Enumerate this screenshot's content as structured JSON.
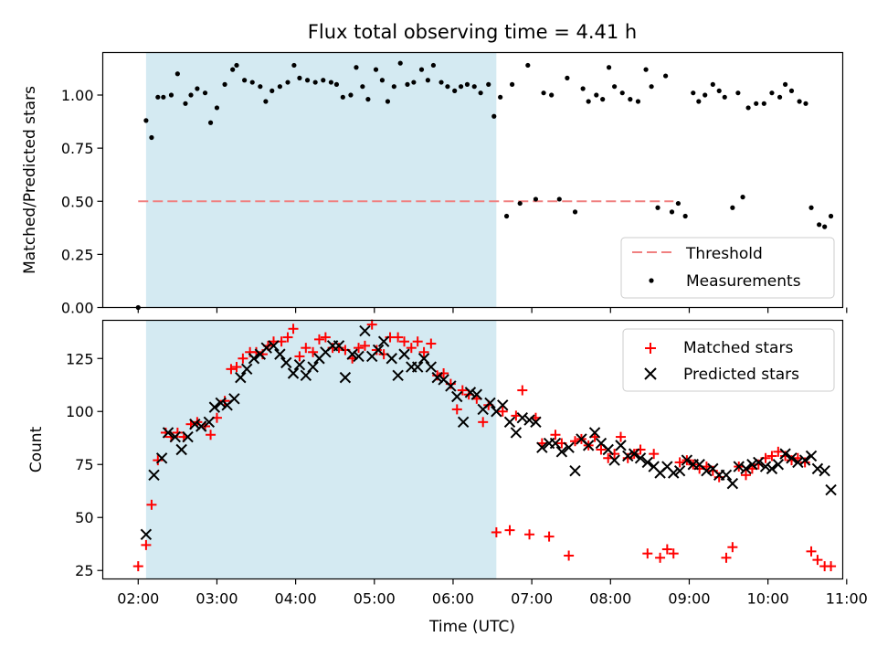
{
  "chart_data": [
    {
      "type": "scatter",
      "title": "Flux total observing time = 4.41 h",
      "xlabel": "",
      "ylabel": "Matched/Predicted stars",
      "xlim": [
        1.55,
        10.95
      ],
      "ylim": [
        0,
        1.2
      ],
      "x_ticks": [
        2,
        3,
        4,
        5,
        6,
        7,
        8,
        9,
        10,
        11
      ],
      "y_ticks": [
        0,
        0.25,
        0.5,
        0.75,
        1.0
      ],
      "y_tick_labels": [
        "0.00",
        "0.25",
        "0.50",
        "0.75",
        "1.00"
      ],
      "shaded_region": [
        2.1,
        6.55
      ],
      "legend_position": "lower right",
      "threshold": {
        "name": "Threshold",
        "y": 0.5,
        "x_range": [
          2.0,
          8.8
        ],
        "color": "#f08080"
      },
      "series": [
        {
          "name": "Measurements",
          "color": "#000000",
          "x": [
            2.0,
            2.1,
            2.17,
            2.25,
            2.32,
            2.42,
            2.5,
            2.6,
            2.67,
            2.75,
            2.85,
            2.92,
            3.0,
            3.1,
            3.2,
            3.25,
            3.35,
            3.45,
            3.55,
            3.62,
            3.7,
            3.8,
            3.9,
            3.98,
            4.05,
            4.15,
            4.25,
            4.35,
            4.45,
            4.52,
            4.6,
            4.7,
            4.77,
            4.85,
            4.92,
            5.02,
            5.1,
            5.17,
            5.25,
            5.33,
            5.42,
            5.5,
            5.6,
            5.68,
            5.75,
            5.85,
            5.93,
            6.02,
            6.1,
            6.18,
            6.27,
            6.35,
            6.45,
            6.52,
            6.6,
            6.68,
            6.75,
            6.85,
            6.95,
            7.05,
            7.15,
            7.25,
            7.35,
            7.45,
            7.55,
            7.65,
            7.72,
            7.82,
            7.9,
            7.98,
            8.05,
            8.15,
            8.25,
            8.35,
            8.45,
            8.52,
            8.6,
            8.7,
            8.78,
            8.86,
            8.95,
            9.05,
            9.12,
            9.2,
            9.3,
            9.38,
            9.45,
            9.55,
            9.62,
            9.68,
            9.75,
            9.85,
            9.95,
            10.05,
            10.15,
            10.22,
            10.3,
            10.4,
            10.48,
            10.55,
            10.65,
            10.72,
            10.8
          ],
          "y": [
            0.0,
            0.88,
            0.8,
            0.99,
            0.99,
            1.0,
            1.1,
            0.96,
            1.0,
            1.03,
            1.01,
            0.87,
            0.94,
            1.05,
            1.12,
            1.14,
            1.07,
            1.06,
            1.04,
            0.97,
            1.02,
            1.04,
            1.06,
            1.14,
            1.08,
            1.07,
            1.06,
            1.07,
            1.06,
            1.05,
            0.99,
            1.0,
            1.13,
            1.04,
            0.98,
            1.12,
            1.07,
            0.97,
            1.04,
            1.15,
            1.05,
            1.06,
            1.12,
            1.07,
            1.14,
            1.06,
            1.04,
            1.02,
            1.04,
            1.05,
            1.04,
            1.01,
            1.05,
            0.9,
            0.99,
            0.43,
            1.05,
            0.49,
            1.14,
            0.51,
            1.01,
            1.0,
            0.51,
            1.08,
            0.45,
            1.03,
            0.97,
            1.0,
            0.98,
            1.13,
            1.04,
            1.01,
            0.98,
            0.97,
            1.12,
            1.04,
            0.47,
            1.09,
            0.45,
            0.49,
            0.43,
            1.01,
            0.97,
            1.0,
            1.05,
            1.02,
            0.99,
            0.47,
            1.01,
            0.52,
            0.94,
            0.96,
            0.96,
            1.01,
            0.99,
            1.05,
            1.02,
            0.97,
            0.96,
            0.47,
            0.39,
            0.38,
            0.43
          ]
        }
      ]
    },
    {
      "type": "scatter",
      "title": "",
      "xlabel": "Time (UTC)",
      "ylabel": "Count",
      "xlim": [
        1.55,
        10.95
      ],
      "ylim": [
        21,
        143
      ],
      "x_ticks": [
        2,
        3,
        4,
        5,
        6,
        7,
        8,
        9,
        10,
        11
      ],
      "x_tick_labels": [
        "02:00",
        "03:00",
        "04:00",
        "05:00",
        "06:00",
        "07:00",
        "08:00",
        "09:00",
        "10:00",
        "11:00"
      ],
      "y_ticks": [
        25,
        50,
        75,
        100,
        125
      ],
      "y_tick_labels": [
        "25",
        "50",
        "75",
        "100",
        "125"
      ],
      "shaded_region": [
        2.1,
        6.55
      ],
      "legend_position": "upper right",
      "series": [
        {
          "name": "Matched stars",
          "marker": "+",
          "color": "#ff0000",
          "x": [
            2.0,
            2.1,
            2.17,
            2.25,
            2.35,
            2.42,
            2.5,
            2.58,
            2.67,
            2.75,
            2.85,
            2.92,
            3.0,
            3.1,
            3.18,
            3.25,
            3.33,
            3.42,
            3.5,
            3.58,
            3.65,
            3.72,
            3.82,
            3.9,
            3.97,
            4.05,
            4.13,
            4.22,
            4.3,
            4.38,
            4.47,
            4.55,
            4.63,
            4.72,
            4.8,
            4.88,
            4.97,
            5.03,
            5.12,
            5.2,
            5.3,
            5.38,
            5.47,
            5.55,
            5.63,
            5.72,
            5.8,
            5.88,
            5.97,
            6.05,
            6.12,
            6.2,
            6.3,
            6.38,
            6.45,
            6.55,
            6.63,
            6.72,
            6.8,
            6.88,
            6.97,
            7.05,
            7.13,
            7.22,
            7.3,
            7.38,
            7.47,
            7.55,
            7.63,
            7.72,
            7.8,
            7.88,
            7.97,
            8.05,
            8.13,
            8.22,
            8.3,
            8.38,
            8.47,
            8.55,
            8.63,
            8.72,
            8.8,
            8.88,
            8.97,
            9.05,
            9.13,
            9.22,
            9.3,
            9.38,
            9.47,
            9.55,
            9.63,
            9.72,
            9.8,
            9.88,
            9.97,
            10.05,
            10.13,
            10.22,
            10.3,
            10.38,
            10.47,
            10.55,
            10.63,
            10.72,
            10.8
          ],
          "y": [
            27,
            37,
            56,
            77,
            90,
            88,
            90,
            88,
            94,
            95,
            93,
            89,
            97,
            105,
            120,
            121,
            125,
            128,
            128,
            127,
            131,
            133,
            133,
            135,
            139,
            126,
            130,
            128,
            134,
            135,
            130,
            130,
            129,
            125,
            130,
            131,
            141,
            129,
            127,
            135,
            135,
            133,
            130,
            133,
            128,
            132,
            117,
            118,
            113,
            101,
            110,
            108,
            106,
            95,
            103,
            43,
            100,
            44,
            98,
            110,
            42,
            97,
            85,
            41,
            89,
            85,
            32,
            86,
            87,
            84,
            88,
            82,
            78,
            80,
            88,
            78,
            80,
            82,
            33,
            80,
            31,
            35,
            33,
            76,
            77,
            75,
            73,
            74,
            72,
            69,
            31,
            36,
            74,
            70,
            73,
            75,
            78,
            79,
            81,
            79,
            77,
            78,
            76,
            34,
            30,
            27,
            27
          ]
        },
        {
          "name": "Predicted stars",
          "marker": "x",
          "color": "#000000",
          "x": [
            2.1,
            2.2,
            2.3,
            2.38,
            2.47,
            2.55,
            2.63,
            2.72,
            2.8,
            2.9,
            2.97,
            3.05,
            3.13,
            3.22,
            3.3,
            3.38,
            3.47,
            3.55,
            3.63,
            3.72,
            3.8,
            3.88,
            3.97,
            4.05,
            4.13,
            4.22,
            4.3,
            4.38,
            4.47,
            4.55,
            4.63,
            4.72,
            4.8,
            4.88,
            4.97,
            5.05,
            5.12,
            5.22,
            5.3,
            5.38,
            5.47,
            5.55,
            5.63,
            5.72,
            5.8,
            5.88,
            5.97,
            6.05,
            6.13,
            6.22,
            6.3,
            6.38,
            6.47,
            6.55,
            6.63,
            6.72,
            6.8,
            6.88,
            6.97,
            7.05,
            7.13,
            7.22,
            7.3,
            7.38,
            7.47,
            7.55,
            7.63,
            7.72,
            7.8,
            7.88,
            7.97,
            8.05,
            8.13,
            8.22,
            8.3,
            8.38,
            8.47,
            8.55,
            8.63,
            8.72,
            8.8,
            8.88,
            8.97,
            9.05,
            9.13,
            9.22,
            9.3,
            9.38,
            9.47,
            9.55,
            9.63,
            9.72,
            9.8,
            9.88,
            9.97,
            10.05,
            10.13,
            10.22,
            10.3,
            10.38,
            10.47,
            10.55,
            10.63,
            10.72,
            10.8
          ],
          "y": [
            42,
            70,
            78,
            90,
            88,
            82,
            88,
            94,
            93,
            95,
            102,
            104,
            103,
            106,
            116,
            120,
            125,
            127,
            130,
            131,
            127,
            123,
            118,
            122,
            117,
            121,
            125,
            128,
            131,
            131,
            116,
            127,
            126,
            138,
            126,
            129,
            133,
            125,
            117,
            127,
            121,
            121,
            125,
            121,
            116,
            115,
            112,
            107,
            95,
            109,
            108,
            101,
            104,
            100,
            103,
            95,
            90,
            97,
            96,
            95,
            83,
            85,
            85,
            81,
            83,
            72,
            87,
            84,
            90,
            85,
            82,
            77,
            84,
            79,
            80,
            78,
            76,
            74,
            71,
            74,
            71,
            72,
            77,
            75,
            75,
            72,
            73,
            70,
            70,
            66,
            74,
            73,
            75,
            76,
            74,
            73,
            75,
            80,
            78,
            76,
            77,
            79,
            73,
            72,
            63
          ]
        }
      ]
    }
  ]
}
